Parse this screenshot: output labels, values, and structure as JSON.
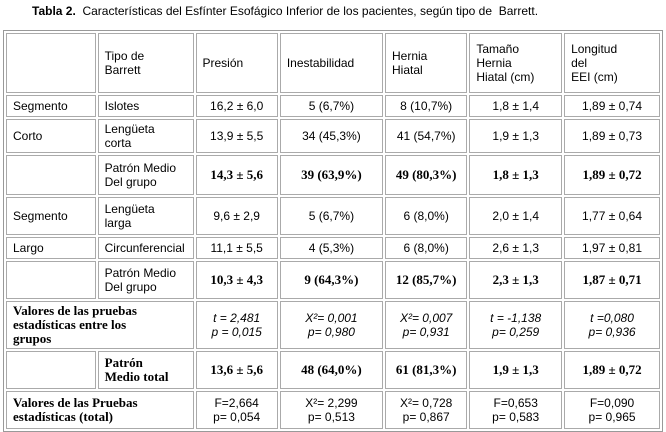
{
  "title": {
    "label": "Tabla 2.",
    "text": "Características del Esfínter Esofágico Inferior de los pacientes, según tipo de  Barrett."
  },
  "table": {
    "header": [
      "Tipo de\nBarrett",
      "Presión",
      "Inestabilidad",
      "Hernia\nHiatal",
      "Tamaño\nHernia\nHiatal (cm)",
      "Longitud\ndel\nEEI (cm)"
    ],
    "rows": [
      [
        "Segmento",
        "Islotes",
        "16,2 ± 6,0",
        "5 (6,7%)",
        "8 (10,7%)",
        "1,8 ± 1,4",
        "1,89 ± 0,74"
      ],
      [
        "Corto",
        "Lengüeta\ncorta",
        "13,9 ± 5,5",
        "34 (45,3%)",
        "41 (54,7%)",
        "1,9 ± 1,3",
        "1,89 ± 0,73"
      ],
      [
        "Patrón Medio\nDel grupo",
        "14,3 ± 5,6",
        "39 (63,9%)",
        "49 (80,3%)",
        "1,8 ± 1,3",
        "1,89 ± 0,72"
      ],
      [
        "Segmento",
        "Lengüeta\nlarga",
        "9,6 ± 2,9",
        "5 (6,7%)",
        "6 (8,0%)",
        "2,0 ± 1,4",
        "1,77 ± 0,64"
      ],
      [
        "Largo",
        "Circunferencial",
        "11,1 ± 5,5",
        "4 (5,3%)",
        "6 (8,0%)",
        "2,6 ± 1,3",
        "1,97 ± 0,81"
      ],
      [
        "Patrón Medio\nDel grupo",
        "10,3 ± 4,3",
        "9 (64,3%)",
        "12 (85,7%)",
        "2,3 ± 1,3",
        "1,87 ± 0,71"
      ],
      [
        "Valores de las pruebas\nestadísticas entre los\ngrupos",
        "t = 2,481\np = 0,015",
        "X²= 0,001\np= 0,980",
        "X²= 0,007\np= 0,931",
        "t = -1,138\np= 0,259",
        "t =0,080\np= 0,936"
      ],
      [
        "Patrón\nMedio total",
        "13,6 ± 5,6",
        "48 (64,0%)",
        "61 (81,3%)",
        "1,9 ± 1,3",
        "1,89 ± 0,72"
      ],
      [
        "Valores de las Pruebas\nestadísticas (total)",
        "F=2,664\np= 0,054",
        "X²= 2,299\np= 0,513",
        "X²= 0,728\np= 0,867",
        "F=0,653\np= 0,583",
        "F=0,090\np= 0,965"
      ]
    ]
  }
}
